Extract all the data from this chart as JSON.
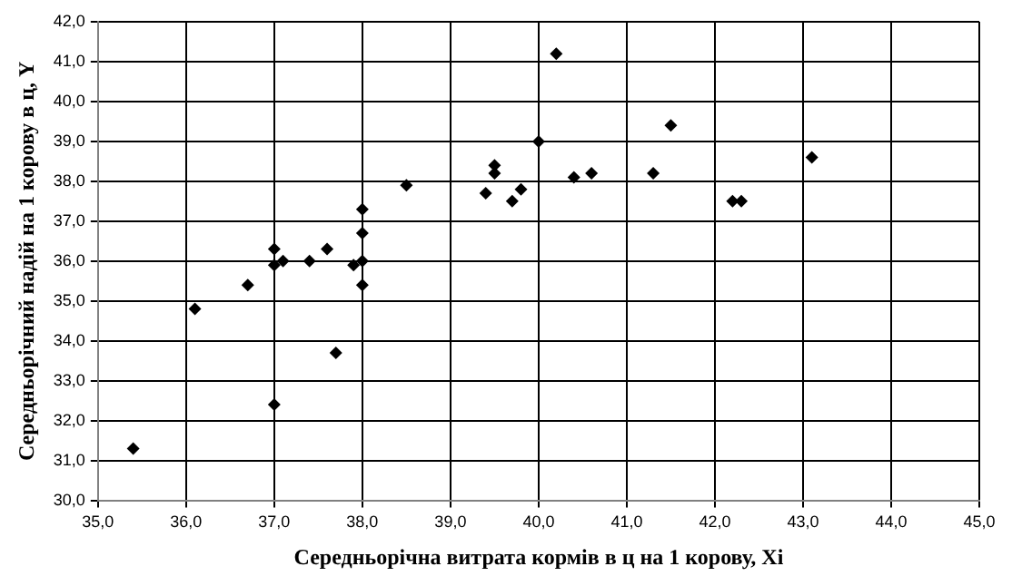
{
  "chart_data": {
    "type": "scatter",
    "xlabel": "Середньорічна витрата кормів в ц на 1 корову, Xi",
    "ylabel": "Середньорічний надій на 1 корову в ц, Y",
    "marker": "diamond",
    "grid": true,
    "legend": false,
    "series": [
      {
        "color": "#000000",
        "x": [
          35.4,
          36.1,
          36.7,
          37.0,
          37.0,
          37.1,
          37.0,
          37.4,
          37.6,
          37.7,
          37.9,
          38.0,
          38.0,
          38.0,
          38.0,
          38.5,
          39.4,
          39.5,
          39.5,
          39.7,
          39.8,
          40.0,
          40.2,
          40.4,
          40.6,
          41.3,
          41.5,
          42.2,
          42.3,
          43.1
        ],
        "values": [
          31.3,
          34.8,
          35.4,
          36.3,
          35.9,
          36.0,
          32.4,
          36.0,
          36.3,
          33.7,
          35.9,
          37.3,
          36.7,
          36.0,
          35.4,
          37.9,
          37.7,
          38.4,
          38.2,
          37.5,
          37.8,
          39.0,
          41.2,
          38.1,
          38.2,
          38.2,
          39.4,
          37.5,
          37.5,
          38.6
        ]
      }
    ],
    "xlim": [
      35,
      45
    ],
    "xticks": [
      {
        "value": 35,
        "label": "35,0"
      },
      {
        "value": 36,
        "label": "36,0"
      },
      {
        "value": 37,
        "label": "37,0"
      },
      {
        "value": 38,
        "label": "38,0"
      },
      {
        "value": 39,
        "label": "39,0"
      },
      {
        "value": 40,
        "label": "40,0"
      },
      {
        "value": 41,
        "label": "41,0"
      },
      {
        "value": 42,
        "label": "42,0"
      },
      {
        "value": 43,
        "label": "43,0"
      },
      {
        "value": 44,
        "label": "44,0"
      },
      {
        "value": 45,
        "label": "45,0"
      }
    ],
    "ylim": [
      30,
      42
    ],
    "yticks": [
      {
        "value": 30,
        "label": "30,0"
      },
      {
        "value": 31,
        "label": "31,0"
      },
      {
        "value": 32,
        "label": "32,0"
      },
      {
        "value": 33,
        "label": "33,0"
      },
      {
        "value": 34,
        "label": "34,0"
      },
      {
        "value": 35,
        "label": "35,0"
      },
      {
        "value": 36,
        "label": "36,0"
      },
      {
        "value": 37,
        "label": "37,0"
      },
      {
        "value": 38,
        "label": "38,0"
      },
      {
        "value": 39,
        "label": "39,0"
      },
      {
        "value": 40,
        "label": "40,0"
      },
      {
        "value": 41,
        "label": "41,0"
      },
      {
        "value": 42,
        "label": "42,0"
      }
    ]
  }
}
